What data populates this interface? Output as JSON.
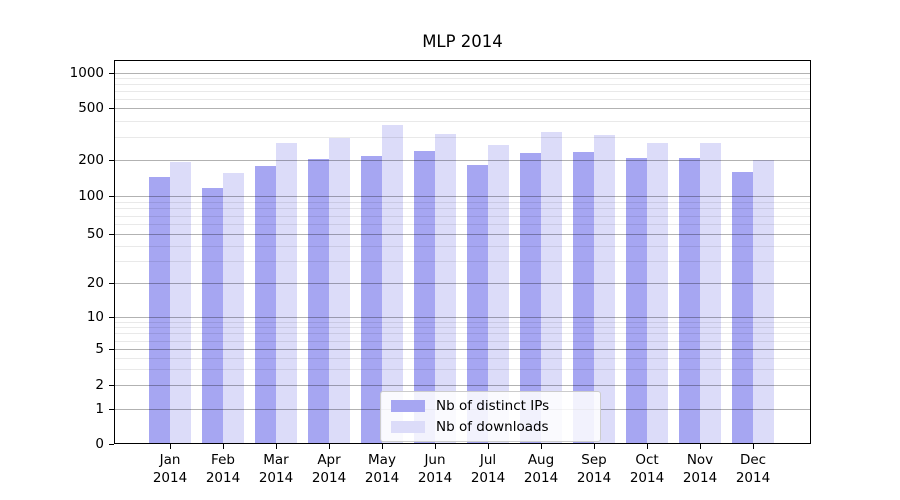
{
  "chart_data": {
    "type": "bar",
    "title": "MLP 2014",
    "categories": [
      "Jan",
      "Feb",
      "Mar",
      "Apr",
      "May",
      "Jun",
      "Jul",
      "Aug",
      "Sep",
      "Oct",
      "Nov",
      "Dec"
    ],
    "category_year": "2014",
    "series": [
      {
        "name": "Nb of distinct IPs",
        "color": "#a6a6f2",
        "values": [
          143,
          116,
          178,
          203,
          213,
          233,
          181,
          225,
          229,
          206,
          209,
          160
        ]
      },
      {
        "name": "Nb of downloads",
        "color": "#dcdcf9",
        "values": [
          192,
          157,
          268,
          297,
          368,
          315,
          259,
          328,
          308,
          268,
          268,
          200
        ]
      }
    ],
    "y_axis": {
      "scale": "symlog",
      "tick_labels": [
        "0",
        "1",
        "2",
        "5",
        "10",
        "20",
        "50",
        "100",
        "200",
        "500",
        "1000"
      ],
      "ylim": [
        0,
        1270
      ],
      "grid": true
    },
    "legend": {
      "position": "lower-center"
    },
    "colors": {
      "background": "#ffffff",
      "axis": "#000000",
      "major_grid": "#b0b0b0",
      "minor_grid": "#e8e8e8"
    }
  }
}
